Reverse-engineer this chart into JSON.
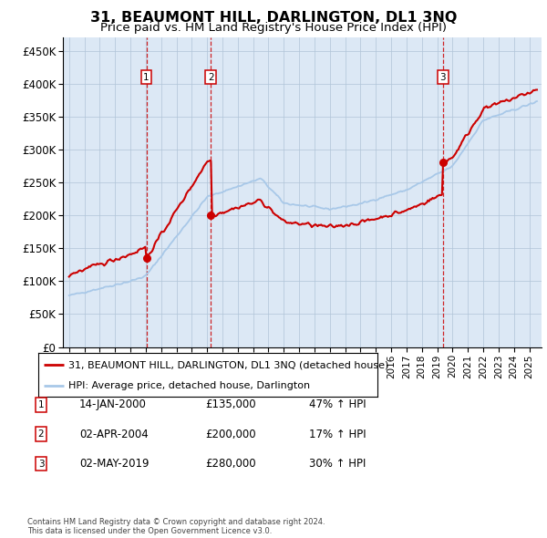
{
  "title": "31, BEAUMONT HILL, DARLINGTON, DL1 3NQ",
  "subtitle": "Price paid vs. HM Land Registry's House Price Index (HPI)",
  "title_fontsize": 11.5,
  "subtitle_fontsize": 9.5,
  "ylim": [
    0,
    470000
  ],
  "yticks": [
    0,
    50000,
    100000,
    150000,
    200000,
    250000,
    300000,
    350000,
    400000,
    450000
  ],
  "ytick_labels": [
    "£0",
    "£50K",
    "£100K",
    "£150K",
    "£200K",
    "£250K",
    "£300K",
    "£350K",
    "£400K",
    "£450K"
  ],
  "xlim_start": 1994.6,
  "xlim_end": 2025.8,
  "background_color": "#dce8f5",
  "plot_bg_color": "#dce8f5",
  "line_color_hpi": "#a8c8e8",
  "line_color_price": "#cc0000",
  "sale_points": [
    {
      "year": 2000.04,
      "price": 135000,
      "label": "1"
    },
    {
      "year": 2004.25,
      "price": 200000,
      "label": "2"
    },
    {
      "year": 2019.37,
      "price": 280000,
      "label": "3"
    }
  ],
  "vline_color": "#cc0000",
  "legend_entries": [
    {
      "label": "31, BEAUMONT HILL, DARLINGTON, DL1 3NQ (detached house)",
      "color": "#cc0000",
      "lw": 2
    },
    {
      "label": "HPI: Average price, detached house, Darlington",
      "color": "#a8c8e8",
      "lw": 2
    }
  ],
  "table_rows": [
    {
      "num": "1",
      "date": "14-JAN-2000",
      "price": "£135,000",
      "hpi": "47% ↑ HPI"
    },
    {
      "num": "2",
      "date": "02-APR-2004",
      "price": "£200,000",
      "hpi": "17% ↑ HPI"
    },
    {
      "num": "3",
      "date": "02-MAY-2019",
      "price": "£280,000",
      "hpi": "30% ↑ HPI"
    }
  ],
  "footer": "Contains HM Land Registry data © Crown copyright and database right 2024.\nThis data is licensed under the Open Government Licence v3.0.",
  "grid_color": "#b0c4d8"
}
